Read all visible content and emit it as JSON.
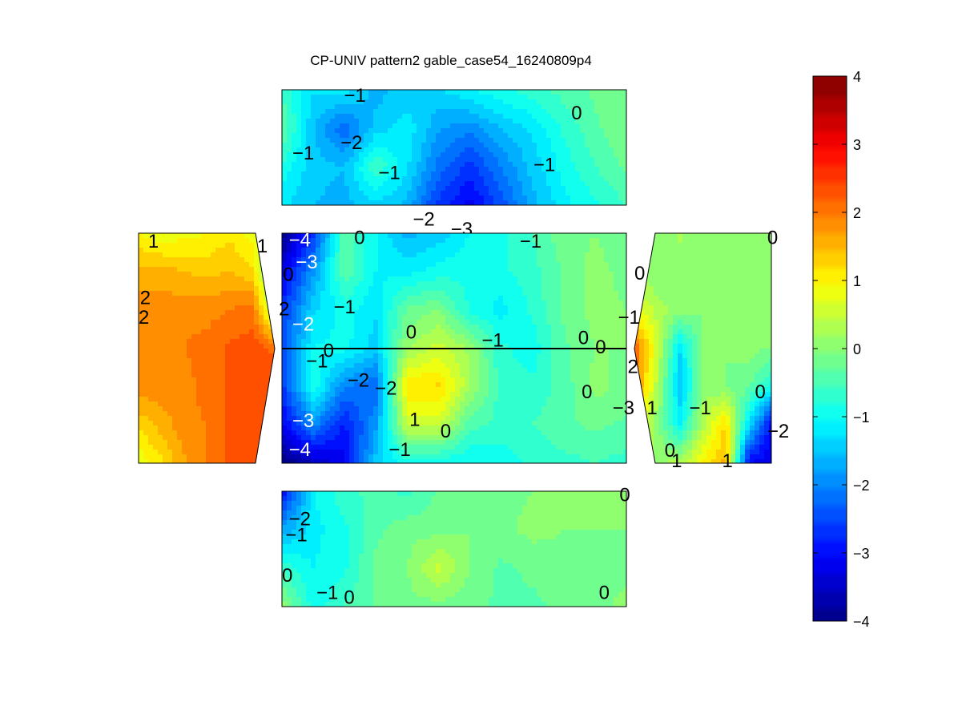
{
  "chart_data": {
    "type": "heatmap",
    "title": "CP-UNIV pattern2 gable_case54_16240809p4",
    "colorbar": {
      "ticks": [
        "4",
        "3",
        "2",
        "1",
        "0",
        "−1",
        "−2",
        "−3",
        "−4"
      ],
      "clim": [
        -4,
        4
      ],
      "colormap": "jet"
    },
    "panels": [
      {
        "name": "top",
        "grid": [
          [
            -0.6,
            -1.2,
            -1.1,
            -1.6,
            -1.4,
            -1.3,
            -1.0,
            -0.8,
            -0.6,
            -0.4,
            -0.2,
            0.0
          ],
          [
            -0.2,
            -1.5,
            -2.2,
            -1.4,
            -1.1,
            -1.7,
            -1.9,
            -1.5,
            -1.2,
            -0.7,
            -0.3,
            0.0
          ],
          [
            -0.8,
            -1.4,
            -1.5,
            -0.5,
            -1.2,
            -2.1,
            -2.6,
            -2.0,
            -1.4,
            -0.9,
            -0.5,
            -0.2
          ],
          [
            -1.2,
            -1.5,
            -1.6,
            -1.3,
            -1.6,
            -2.6,
            -3.1,
            -2.4,
            -1.6,
            -1.1,
            -0.8,
            -0.5
          ]
        ],
        "labels": [
          {
            "text": "−1",
            "x": 0.18,
            "y": 0.05
          },
          {
            "text": "−2",
            "x": 0.17,
            "y": 0.46
          },
          {
            "text": "−1",
            "x": 0.03,
            "y": 0.55
          },
          {
            "text": "−1",
            "x": 0.28,
            "y": 0.72
          },
          {
            "text": "−1",
            "x": 0.73,
            "y": 0.65
          },
          {
            "text": "0",
            "x": 0.84,
            "y": 0.2
          },
          {
            "text": "−2",
            "x": 0.38,
            "y": 1.12
          },
          {
            "text": "−3",
            "x": 0.49,
            "y": 1.21
          }
        ]
      },
      {
        "name": "center",
        "grid": [
          [
            -4.0,
            -2.6,
            -0.3,
            -1.0,
            -1.6,
            -1.4,
            -1.0,
            -0.8,
            -0.5,
            -0.1,
            0.0,
            -0.2
          ],
          [
            -3.2,
            -1.8,
            -0.3,
            -1.0,
            -1.1,
            -0.9,
            -0.8,
            -0.8,
            -0.6,
            -0.2,
            0.1,
            -0.1
          ],
          [
            -2.6,
            -1.3,
            -0.9,
            -1.2,
            -0.2,
            0.0,
            -0.8,
            -1.1,
            -0.7,
            -0.2,
            0.1,
            0.0
          ],
          [
            -2.4,
            -1.0,
            -0.9,
            -1.4,
            0.2,
            0.6,
            0.2,
            -0.7,
            -0.9,
            -0.3,
            0.0,
            0.0
          ],
          [
            -2.6,
            -0.8,
            -2.0,
            -2.2,
            1.2,
            1.3,
            0.3,
            -0.6,
            -0.7,
            -0.4,
            0.1,
            -0.1
          ],
          [
            -3.1,
            -1.9,
            -2.8,
            -1.8,
            0.6,
            0.6,
            -0.4,
            -0.6,
            -0.5,
            -0.3,
            -0.2,
            -0.3
          ],
          [
            -4.0,
            -3.5,
            -3.1,
            -1.4,
            -0.9,
            -0.9,
            -1.0,
            -0.9,
            -0.7,
            -0.6,
            -0.5,
            -0.6
          ]
        ],
        "labels": [
          {
            "text": "−4",
            "x": 0.02,
            "y": 0.06,
            "white": true
          },
          {
            "text": "0",
            "x": 0.21,
            "y": 0.04
          },
          {
            "text": "−1",
            "x": 0.69,
            "y": 0.07
          },
          {
            "text": "−3",
            "x": 0.04,
            "y": 0.25,
            "white": true
          },
          {
            "text": "−1",
            "x": 0.15,
            "y": 0.64
          },
          {
            "text": "−2",
            "x": 0.03,
            "y": 0.79,
            "white": true
          },
          {
            "text": "0",
            "x": 0.36,
            "y": 0.86
          },
          {
            "text": "−1",
            "x": 0.58,
            "y": 0.93
          },
          {
            "text": "0",
            "x": 0.86,
            "y": 0.91
          },
          {
            "text": "0",
            "x": 0.91,
            "y": 0.99
          },
          {
            "text": "0",
            "x": 0.12,
            "y": 1.02
          },
          {
            "text": "−1",
            "x": 0.07,
            "y": 1.11
          },
          {
            "text": "−2",
            "x": 0.19,
            "y": 1.28
          },
          {
            "text": "−2",
            "x": 0.27,
            "y": 1.35
          },
          {
            "text": "0",
            "x": 0.87,
            "y": 1.38
          },
          {
            "text": "1",
            "x": 0.37,
            "y": 1.62
          },
          {
            "text": "0",
            "x": 0.46,
            "y": 1.72
          },
          {
            "text": "−3",
            "x": 0.03,
            "y": 1.63,
            "white": true
          },
          {
            "text": "−1",
            "x": 0.31,
            "y": 1.88
          },
          {
            "text": "−4",
            "x": 0.02,
            "y": 1.88,
            "white": true
          }
        ]
      },
      {
        "name": "left",
        "grid": [
          [
            1.0,
            0.8,
            0.9,
            1.0,
            1.2,
            0.9,
            0.5
          ],
          [
            1.6,
            1.6,
            1.5,
            1.4,
            1.5,
            1.3,
            -0.5
          ],
          [
            1.9,
            1.9,
            1.9,
            1.9,
            2.0,
            2.1,
            0.2
          ],
          [
            2.0,
            2.0,
            2.0,
            2.1,
            2.3,
            2.4,
            2.2
          ],
          [
            1.9,
            1.9,
            1.9,
            2.1,
            2.3,
            2.5,
            2.3
          ],
          [
            1.3,
            1.6,
            1.9,
            2.0,
            2.3,
            2.4,
            2.2
          ],
          [
            0.8,
            1.2,
            1.7,
            2.0,
            2.3,
            2.3,
            2.1
          ]
        ],
        "labels": [
          {
            "text": "1",
            "x": 0.07,
            "y": 0.07
          },
          {
            "text": "1",
            "x": 0.87,
            "y": 0.11
          },
          {
            "text": "0",
            "x": 1.06,
            "y": 0.36
          },
          {
            "text": "2",
            "x": 0.01,
            "y": 0.56
          },
          {
            "text": "2",
            "x": 1.03,
            "y": 0.66
          },
          {
            "text": "2",
            "x": 0.0,
            "y": 0.73
          }
        ]
      },
      {
        "name": "right",
        "grid": [
          [
            0.2,
            0.1,
            0.3,
            0.0,
            0.0,
            0.1,
            0.0
          ],
          [
            0.3,
            0.0,
            0.1,
            0.0,
            0.2,
            0.1,
            0.0
          ],
          [
            0.9,
            0.4,
            0.1,
            0.0,
            0.1,
            0.0,
            0.0
          ],
          [
            2.3,
            0.6,
            -1.2,
            0.1,
            0.0,
            0.1,
            0.0
          ],
          [
            2.0,
            0.4,
            -1.5,
            0.1,
            0.0,
            -0.2,
            -0.8
          ],
          [
            0.9,
            0.1,
            -1.0,
            0.4,
            1.3,
            -1.2,
            -3.0
          ],
          [
            0.4,
            0.2,
            0.4,
            1.0,
            1.6,
            -3.0,
            -3.2
          ]
        ],
        "labels": [
          {
            "text": "0",
            "x": 0.97,
            "y": 0.04
          },
          {
            "text": "0",
            "x": 0.0,
            "y": 0.35
          },
          {
            "text": "−1",
            "x": -0.12,
            "y": 0.73
          },
          {
            "text": "2",
            "x": -0.05,
            "y": 1.16
          },
          {
            "text": "−3",
            "x": -0.16,
            "y": 1.52
          },
          {
            "text": "1",
            "x": 0.09,
            "y": 1.52
          },
          {
            "text": "−1",
            "x": 0.4,
            "y": 1.52
          },
          {
            "text": "0",
            "x": 0.88,
            "y": 1.38
          },
          {
            "text": "−2",
            "x": 0.97,
            "y": 1.72
          },
          {
            "text": "0",
            "x": 0.22,
            "y": 1.89
          },
          {
            "text": "1",
            "x": 0.27,
            "y": 1.98
          },
          {
            "text": "1",
            "x": 0.64,
            "y": 1.98
          }
        ]
      },
      {
        "name": "bottom",
        "grid": [
          [
            -3.0,
            -1.0,
            -0.6,
            -0.4,
            -0.6,
            -0.2,
            -0.2,
            -0.1,
            0.0,
            0.0,
            0.0,
            0.0
          ],
          [
            -1.7,
            -1.1,
            -0.8,
            -0.3,
            -0.1,
            -0.1,
            0.0,
            -0.1,
            0.1,
            0.0,
            0.0,
            0.0
          ],
          [
            -0.6,
            -1.0,
            -0.8,
            -0.2,
            0.0,
            0.6,
            0.0,
            -0.3,
            -0.2,
            -0.1,
            -0.1,
            -0.1
          ],
          [
            0.2,
            -0.9,
            -0.5,
            -0.2,
            -0.1,
            -0.1,
            -0.2,
            -0.3,
            -0.3,
            -0.2,
            -0.1,
            0.1
          ]
        ],
        "labels": [
          {
            "text": "0",
            "x": 0.98,
            "y": 0.03
          },
          {
            "text": "−2",
            "x": 0.02,
            "y": 0.24
          },
          {
            "text": "−1",
            "x": 0.01,
            "y": 0.38
          },
          {
            "text": "0",
            "x": 0.0,
            "y": 0.73
          },
          {
            "text": "−1",
            "x": 0.1,
            "y": 0.88
          },
          {
            "text": "0",
            "x": 0.18,
            "y": 0.92
          },
          {
            "text": "0",
            "x": 0.92,
            "y": 0.88
          }
        ]
      }
    ]
  }
}
